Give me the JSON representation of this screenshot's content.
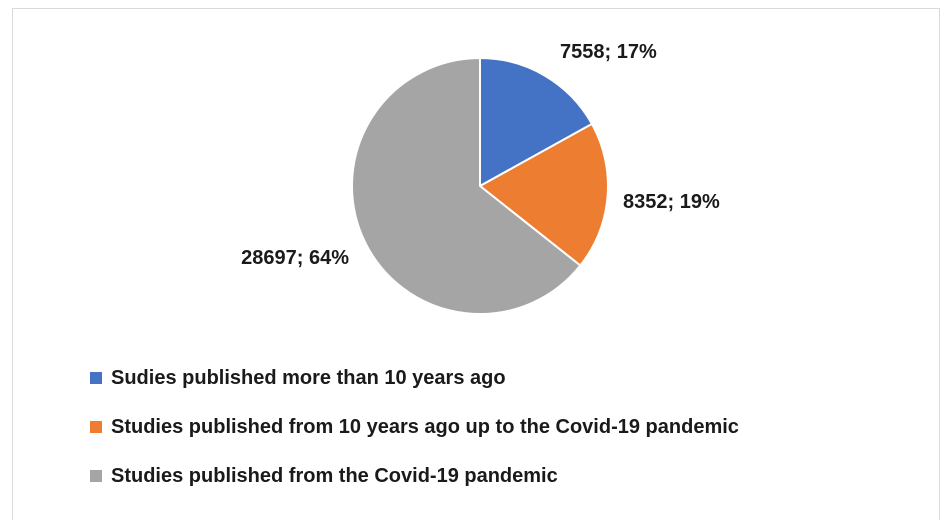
{
  "chart_data": {
    "type": "pie",
    "title": "",
    "slices": [
      {
        "label": "Sudies published more than 10 years ago",
        "value": 7558,
        "percent": "17%",
        "data_label": "7558; 17%",
        "color": "#4472c4"
      },
      {
        "label": "Studies published from 10 years ago up to the Covid-19 pandemic",
        "value": 8352,
        "percent": "19%",
        "data_label": "8352; 19%",
        "color": "#ed7d31"
      },
      {
        "label": "Studies published from the Covid-19 pandemic",
        "value": 28697,
        "percent": "64%",
        "data_label": "28697; 64%",
        "color": "#a5a5a5"
      }
    ],
    "legend_position": "bottom-left",
    "slice_border_color": "#ffffff"
  }
}
